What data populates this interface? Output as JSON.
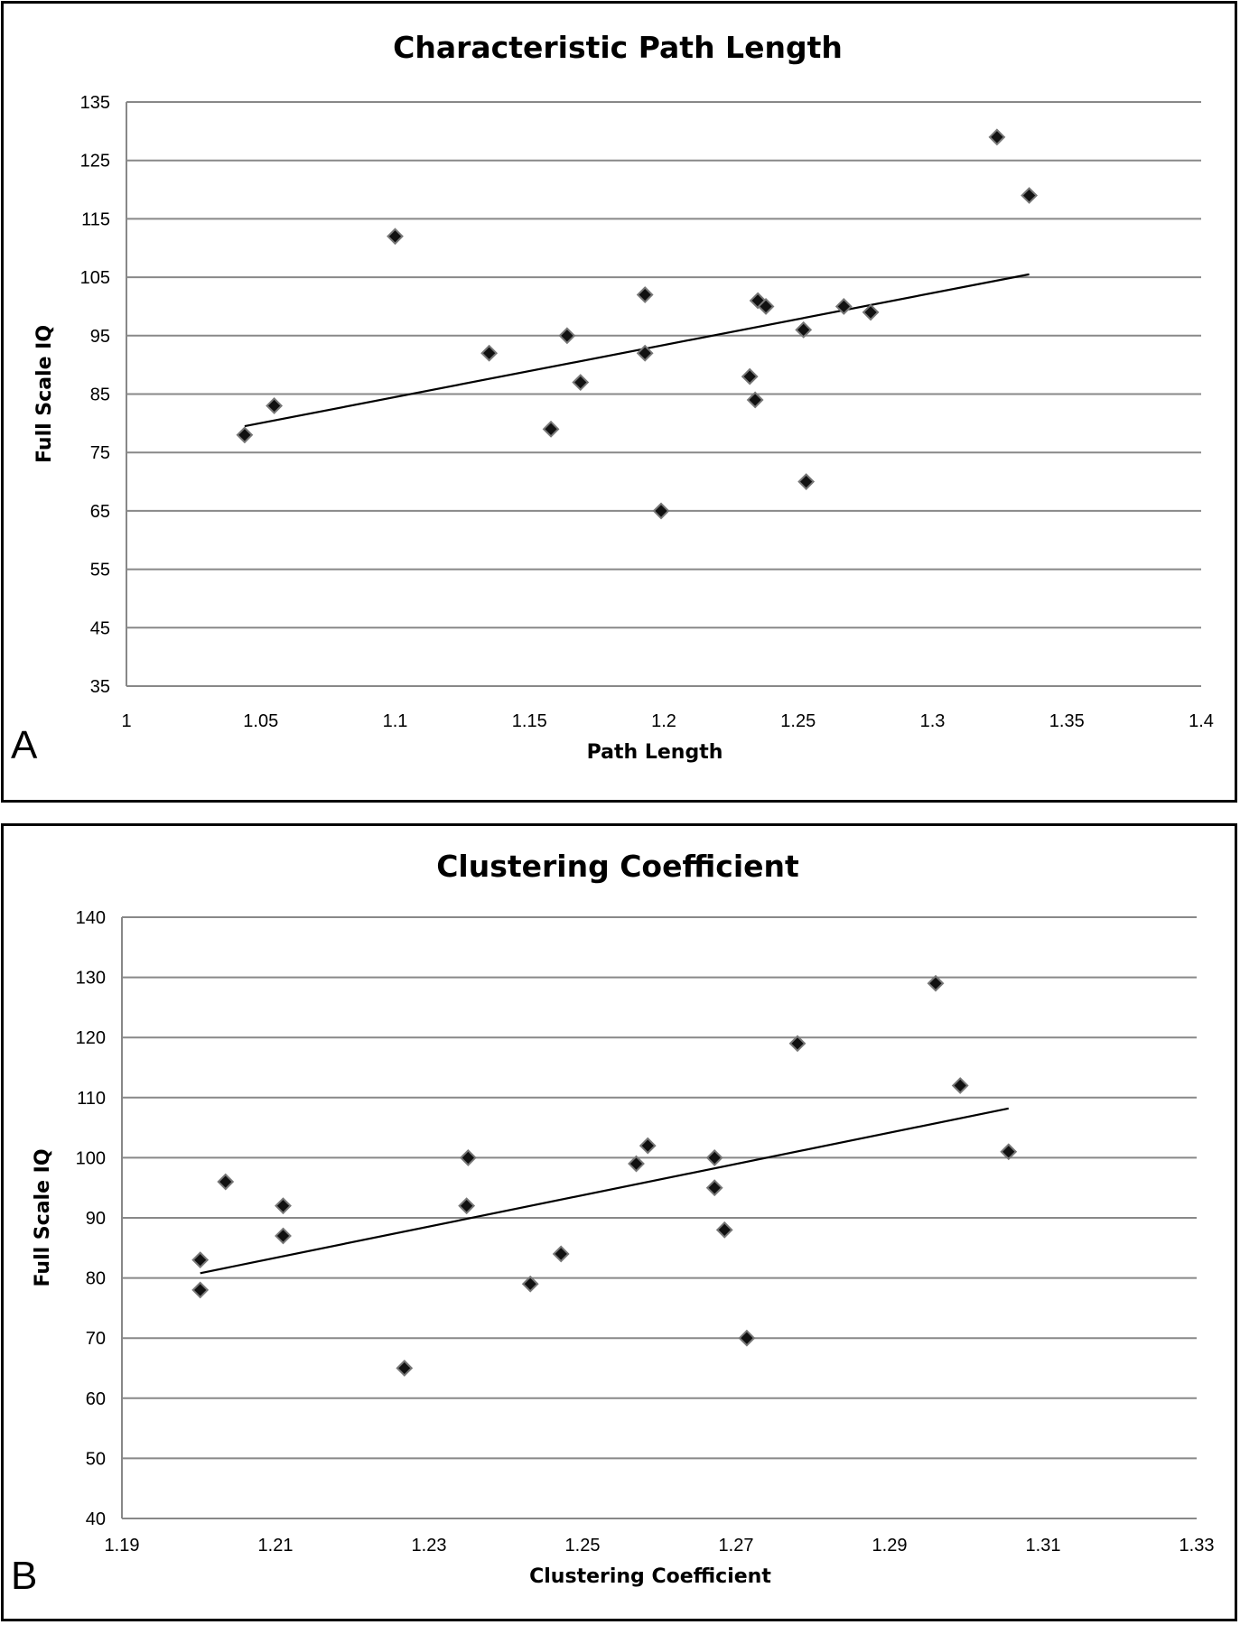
{
  "chart_data": [
    {
      "type": "scatter",
      "panel_label": "A",
      "title": "Characteristic Path Length",
      "xlabel": "Path Length",
      "ylabel": "Full Scale IQ",
      "xlim": [
        1,
        1.4
      ],
      "ylim": [
        35,
        135
      ],
      "x_ticks": [
        "1",
        "1.05",
        "1.1",
        "1.15",
        "1.2",
        "1.25",
        "1.3",
        "1.35",
        "1.4"
      ],
      "y_ticks": [
        "135",
        "125",
        "115",
        "105",
        "95",
        "85",
        "75",
        "65",
        "55",
        "45",
        "35"
      ],
      "grid": true,
      "marker": "diamond",
      "points": [
        {
          "x": 1.044,
          "y": 78
        },
        {
          "x": 1.055,
          "y": 83
        },
        {
          "x": 1.1,
          "y": 112
        },
        {
          "x": 1.135,
          "y": 92
        },
        {
          "x": 1.158,
          "y": 79
        },
        {
          "x": 1.164,
          "y": 95
        },
        {
          "x": 1.169,
          "y": 87
        },
        {
          "x": 1.193,
          "y": 102
        },
        {
          "x": 1.193,
          "y": 92
        },
        {
          "x": 1.199,
          "y": 65
        },
        {
          "x": 1.232,
          "y": 88
        },
        {
          "x": 1.234,
          "y": 84
        },
        {
          "x": 1.235,
          "y": 101
        },
        {
          "x": 1.238,
          "y": 100
        },
        {
          "x": 1.252,
          "y": 96
        },
        {
          "x": 1.253,
          "y": 70
        },
        {
          "x": 1.267,
          "y": 100
        },
        {
          "x": 1.277,
          "y": 99
        },
        {
          "x": 1.324,
          "y": 129
        },
        {
          "x": 1.336,
          "y": 119
        }
      ],
      "trendline": {
        "x": [
          1.044,
          1.336
        ],
        "y": [
          79.5,
          105.5
        ]
      }
    },
    {
      "type": "scatter",
      "panel_label": "B",
      "title": "Clustering Coefficient",
      "xlabel": "Clustering Coefficient",
      "ylabel": "Full Scale IQ",
      "xlim": [
        1.19,
        1.33
      ],
      "ylim": [
        40,
        140
      ],
      "x_ticks": [
        "1.19",
        "1.21",
        "1.23",
        "1.25",
        "1.27",
        "1.29",
        "1.31",
        "1.33"
      ],
      "y_ticks": [
        "140",
        "130",
        "120",
        "110",
        "100",
        "90",
        "80",
        "70",
        "60",
        "50",
        "40"
      ],
      "grid": true,
      "marker": "diamond",
      "points": [
        {
          "x": 1.2002,
          "y": 83
        },
        {
          "x": 1.2002,
          "y": 78
        },
        {
          "x": 1.2035,
          "y": 96
        },
        {
          "x": 1.211,
          "y": 92
        },
        {
          "x": 1.211,
          "y": 87
        },
        {
          "x": 1.2268,
          "y": 65
        },
        {
          "x": 1.2351,
          "y": 100
        },
        {
          "x": 1.2349,
          "y": 92
        },
        {
          "x": 1.2432,
          "y": 79
        },
        {
          "x": 1.2472,
          "y": 84
        },
        {
          "x": 1.257,
          "y": 99
        },
        {
          "x": 1.2585,
          "y": 102
        },
        {
          "x": 1.2672,
          "y": 100
        },
        {
          "x": 1.2672,
          "y": 95
        },
        {
          "x": 1.2685,
          "y": 88
        },
        {
          "x": 1.2714,
          "y": 70
        },
        {
          "x": 1.278,
          "y": 119
        },
        {
          "x": 1.296,
          "y": 129
        },
        {
          "x": 1.2992,
          "y": 112
        },
        {
          "x": 1.3055,
          "y": 101
        }
      ],
      "trendline": {
        "x": [
          1.2002,
          1.3055
        ],
        "y": [
          80.8,
          108.2
        ]
      }
    }
  ]
}
